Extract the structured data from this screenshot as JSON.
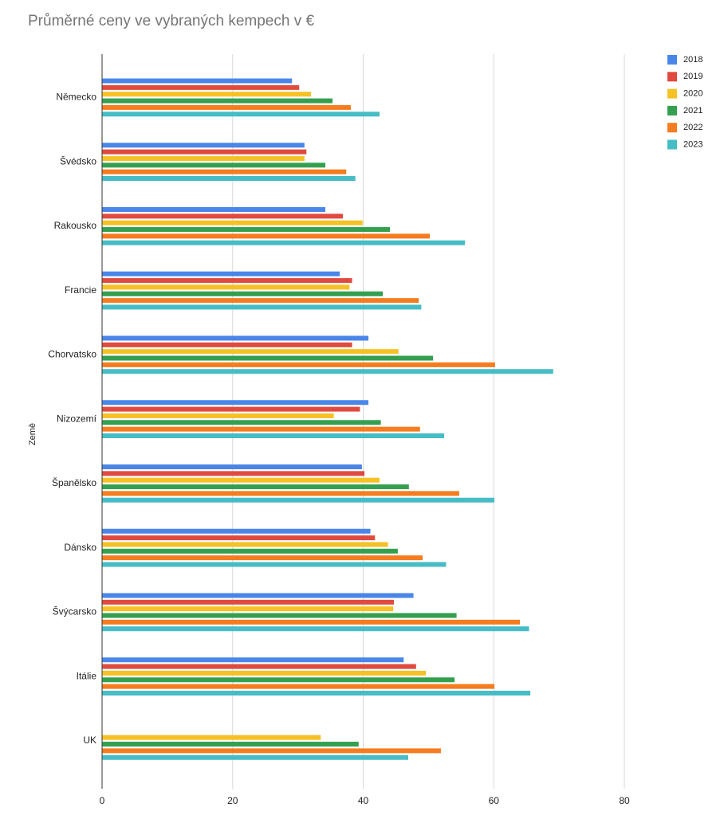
{
  "chart_data": {
    "type": "bar",
    "orientation": "horizontal",
    "title": "Průměrné ceny ve vybraných kempech v €",
    "xlabel": "",
    "ylabel": "Země",
    "xlim": [
      0,
      80
    ],
    "xticks": [
      0,
      20,
      40,
      60,
      80
    ],
    "grid": true,
    "legend_position": "top-right",
    "categories": [
      "Německo",
      "Švédsko",
      "Rakousko",
      "Francie",
      "Chorvatsko",
      "Nizozemí",
      "Španělsko",
      "Dánsko",
      "Švýcarsko",
      "Itálie",
      "UK"
    ],
    "series": [
      {
        "name": "2018",
        "color": "#4a86e8",
        "values": [
          29.1,
          31.0,
          34.2,
          36.4,
          40.8,
          40.8,
          39.8,
          41.1,
          47.7,
          46.2,
          null
        ]
      },
      {
        "name": "2019",
        "color": "#e04a3f",
        "values": [
          30.2,
          31.3,
          36.9,
          38.3,
          38.3,
          39.5,
          40.2,
          41.8,
          44.7,
          48.1,
          null
        ]
      },
      {
        "name": "2020",
        "color": "#f5c125",
        "values": [
          32.0,
          31.0,
          39.9,
          37.9,
          45.4,
          35.5,
          42.5,
          43.8,
          44.6,
          49.6,
          33.5
        ]
      },
      {
        "name": "2021",
        "color": "#34a04f",
        "values": [
          35.3,
          34.2,
          44.1,
          43.0,
          50.7,
          42.7,
          47.0,
          45.3,
          54.3,
          54.0,
          39.3
        ]
      },
      {
        "name": "2022",
        "color": "#f57c1f",
        "values": [
          38.1,
          37.4,
          50.2,
          48.5,
          60.2,
          48.7,
          54.7,
          49.1,
          64.0,
          60.1,
          51.9
        ]
      },
      {
        "name": "2023",
        "color": "#46bdc6",
        "values": [
          42.5,
          38.8,
          55.6,
          48.9,
          69.1,
          52.4,
          60.1,
          52.7,
          65.4,
          65.6,
          46.9
        ]
      }
    ]
  },
  "colors": {
    "grid": "#d9d9d9",
    "axis": "#333333",
    "title": "#757575",
    "text": "#222222"
  }
}
